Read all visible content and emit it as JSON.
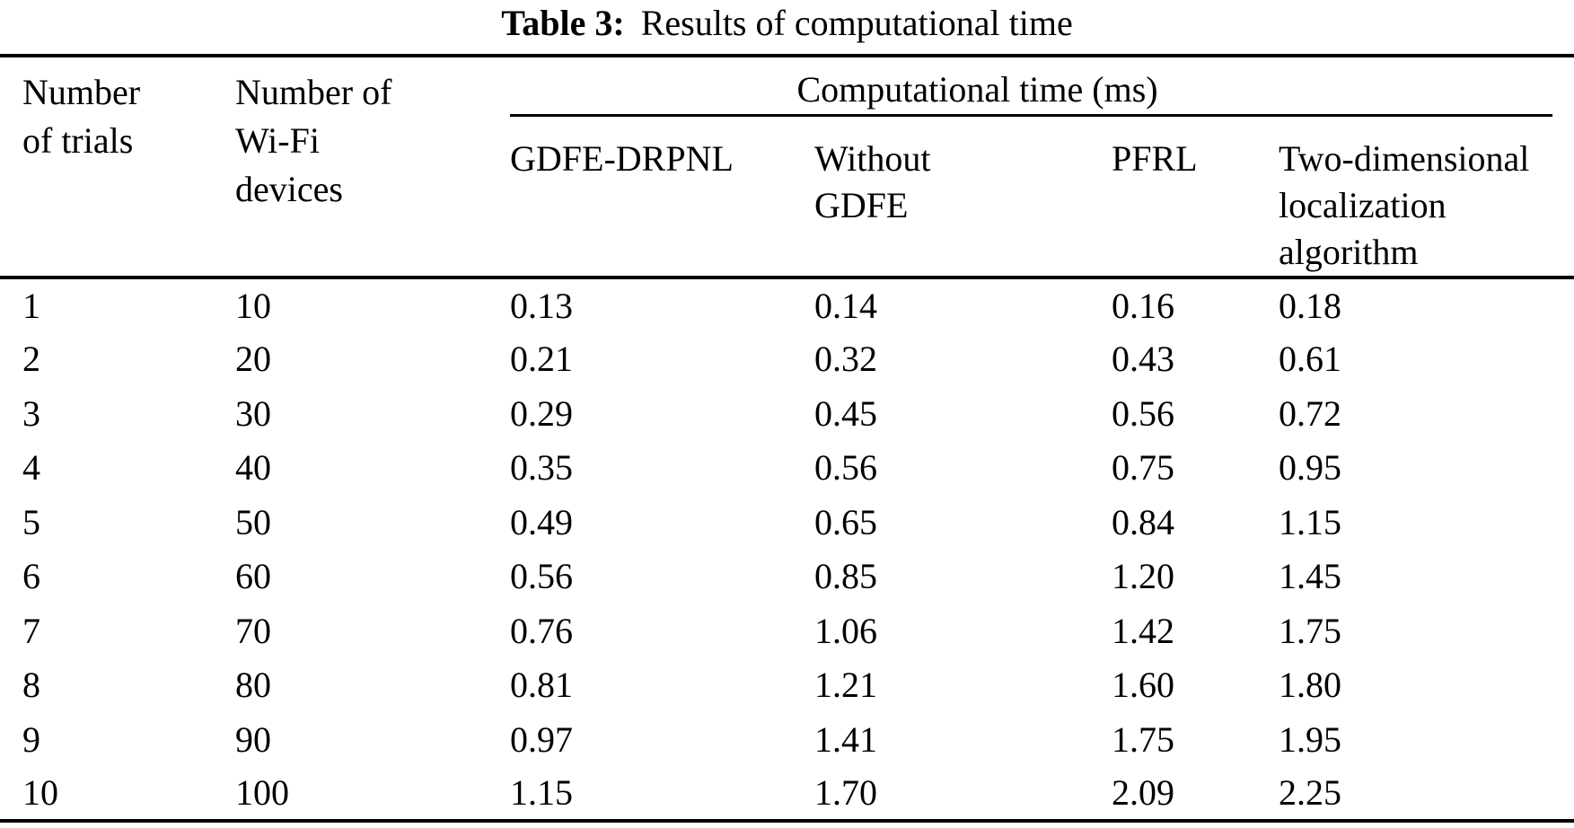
{
  "caption": {
    "label": "Table 3:",
    "text": "Results of computational time"
  },
  "table": {
    "headers": {
      "trials_lines": [
        "Number",
        "of trials"
      ],
      "devices_lines": [
        "Number of",
        "Wi-Fi",
        "devices"
      ],
      "group": "Computational time (ms)",
      "gdfe_drpnl_lines": [
        "GDFE-DRPNL"
      ],
      "without_gdfe_lines": [
        "Without",
        "GDFE"
      ],
      "pfrl_lines": [
        "PFRL"
      ],
      "twodim_lines": [
        "Two-dimensional",
        "localization",
        "algorithm"
      ]
    },
    "rows": [
      [
        "1",
        "10",
        "0.13",
        "0.14",
        "0.16",
        "0.18"
      ],
      [
        "2",
        "20",
        "0.21",
        "0.32",
        "0.43",
        "0.61"
      ],
      [
        "3",
        "30",
        "0.29",
        "0.45",
        "0.56",
        "0.72"
      ],
      [
        "4",
        "40",
        "0.35",
        "0.56",
        "0.75",
        "0.95"
      ],
      [
        "5",
        "50",
        "0.49",
        "0.65",
        "0.84",
        "1.15"
      ],
      [
        "6",
        "60",
        "0.56",
        "0.85",
        "1.20",
        "1.45"
      ],
      [
        "7",
        "70",
        "0.76",
        "1.06",
        "1.42",
        "1.75"
      ],
      [
        "8",
        "80",
        "0.81",
        "1.21",
        "1.60",
        "1.80"
      ],
      [
        "9",
        "90",
        "0.97",
        "1.41",
        "1.75",
        "1.95"
      ],
      [
        "10",
        "100",
        "1.15",
        "1.70",
        "2.09",
        "2.25"
      ]
    ]
  }
}
